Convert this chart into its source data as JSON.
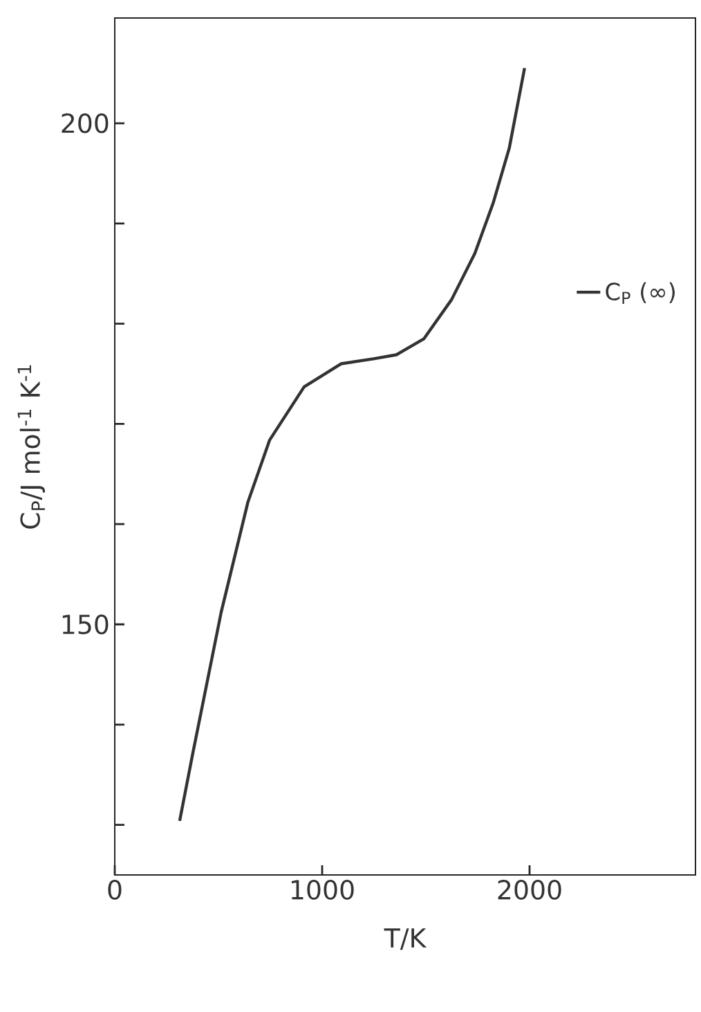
{
  "chart_data": {
    "type": "line",
    "xlabel": "T/K",
    "ylabel": "C$_{P}$/J mol$^{-1}$ K$^{-1}$",
    "xlim": [
      0,
      2800
    ],
    "ylim": [
      125,
      210.5
    ],
    "xticks": [
      0,
      1000,
      2000
    ],
    "yticks": [
      {
        "value": 130,
        "label": null
      },
      {
        "value": 140,
        "label": null
      },
      150,
      {
        "value": 160,
        "label": null
      },
      {
        "value": 170,
        "label": null
      },
      {
        "value": 180,
        "label": null
      },
      {
        "value": 190,
        "label": null
      },
      200
    ],
    "legend": "right",
    "grid": false,
    "series": [
      {
        "name": "C$_{P}$ (∞)",
        "color": "#333333",
        "x": [
          313,
          375,
          513,
          642,
          747,
          913,
          1091,
          1247,
          1358,
          1491,
          1624,
          1736,
          1824,
          1902,
          1976
        ],
        "values": [
          130.4,
          137.0,
          151.2,
          162.2,
          168.4,
          173.7,
          176.0,
          176.5,
          176.9,
          178.5,
          182.4,
          187.0,
          192.0,
          197.5,
          205.5
        ]
      }
    ]
  }
}
